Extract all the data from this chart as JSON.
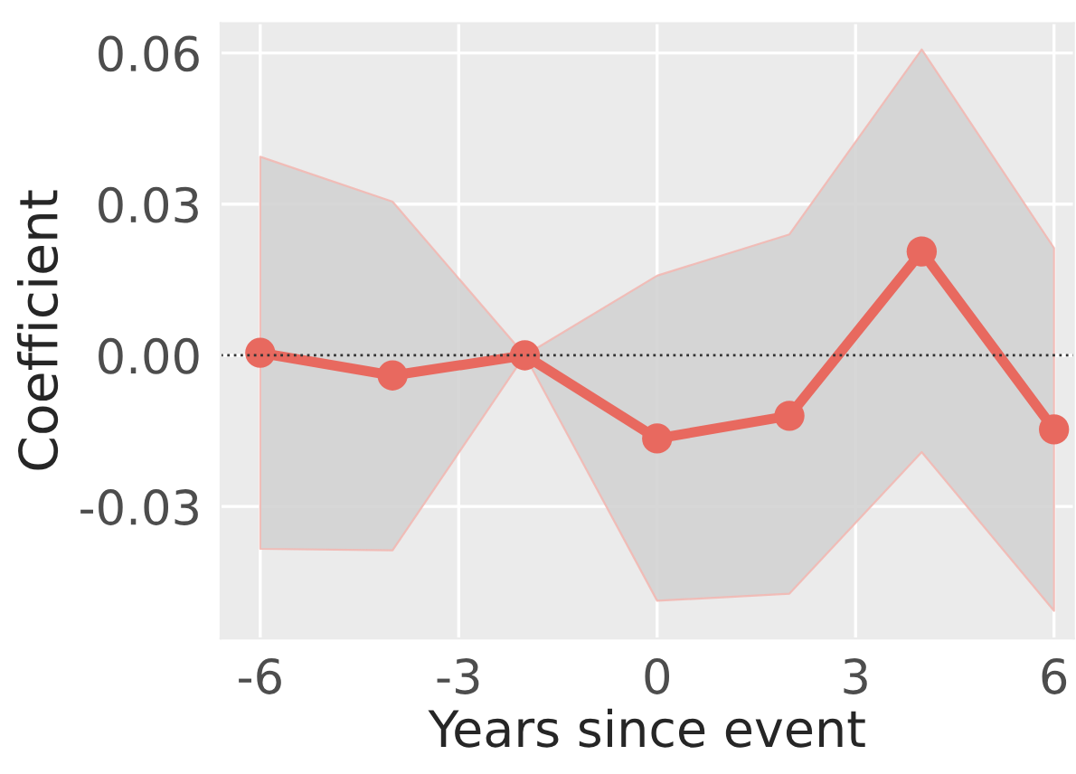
{
  "chart_data": {
    "type": "line",
    "xlabel": "Years since event",
    "ylabel": "Coefficient",
    "x": [
      -6,
      -4,
      -2,
      0,
      2,
      4,
      6
    ],
    "series": [
      {
        "color": "#e8695f",
        "values": [
          0.0005,
          -0.004,
          0.0,
          -0.0165,
          -0.012,
          0.0206,
          -0.0147
        ],
        "lower": [
          -0.0384,
          -0.0387,
          0.0,
          -0.0487,
          -0.0473,
          -0.0192,
          -0.0507
        ],
        "upper": [
          0.0394,
          0.0305,
          0.0,
          0.0158,
          0.024,
          0.0607,
          0.0213
        ]
      }
    ],
    "xlim": [
      -6.6,
      6.3
    ],
    "ylim": [
      -0.0562,
      0.0659
    ],
    "xticks": [
      -6,
      -3,
      0,
      3,
      6
    ],
    "yticks": [
      {
        "value": -0.03,
        "label": "-0.03"
      },
      {
        "value": 0,
        "label": "0.00"
      },
      {
        "value": 0.03,
        "label": "0.03"
      },
      {
        "value": 0.06,
        "label": "0.06"
      }
    ],
    "ref_lines": [
      {
        "axis": "y",
        "value": 0,
        "color": "#333333",
        "line_style": "dotted"
      }
    ],
    "grid": true,
    "marker": "circle",
    "line_style": "solid",
    "legend": false
  }
}
